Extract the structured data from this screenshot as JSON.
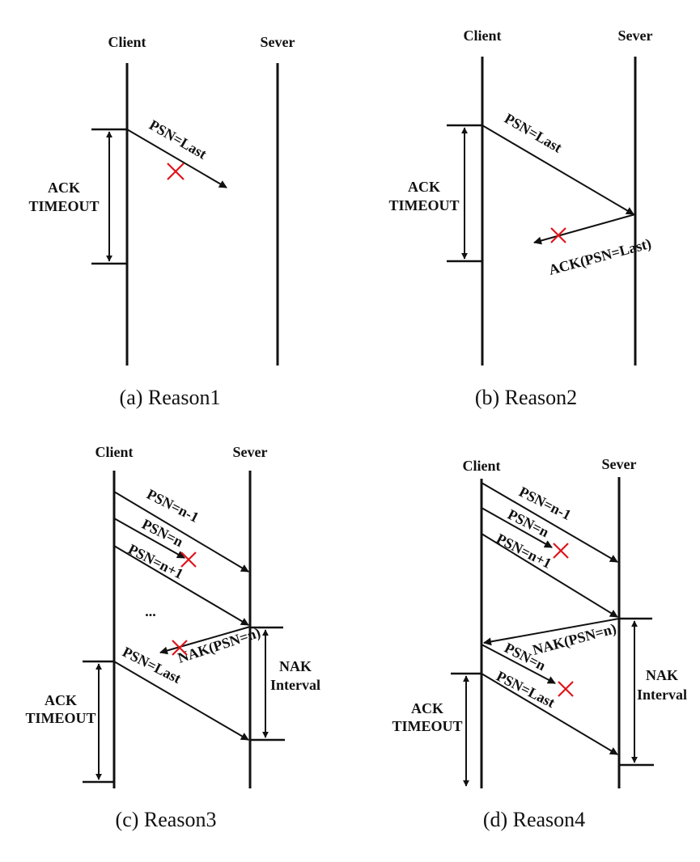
{
  "panel_a": {
    "client": "Client",
    "server": "Sever",
    "msg1": "PSN=Last",
    "timeout_1": "ACK",
    "timeout_2": "TIMEOUT",
    "caption": "(a)  Reason1"
  },
  "panel_b": {
    "client": "Client",
    "server": "Sever",
    "msg1": "PSN=Last",
    "msg2": "ACK(PSN=Last)",
    "timeout_1": "ACK",
    "timeout_2": "TIMEOUT",
    "caption": "(b)  Reason2"
  },
  "panel_c": {
    "client": "Client",
    "server": "Sever",
    "msg1": "PSN=n-1",
    "msg2": "PSN=n",
    "msg3": "PSN=n+1",
    "ellipsis": "...",
    "msg4": "NAK(PSN=n)",
    "msg5": "PSN=Last",
    "nak_1": "NAK",
    "nak_2": "Interval",
    "timeout_1": "ACK",
    "timeout_2": "TIMEOUT",
    "caption": "(c)  Reason3"
  },
  "panel_d": {
    "client": "Client",
    "server": "Sever",
    "msg1": "PSN=n-1",
    "msg2": "PSN=n",
    "msg3": "PSN=n+1",
    "msg4": "NAK(PSN=n)",
    "msg5": "PSN=n",
    "msg6": "PSN=Last",
    "nak_1": "NAK",
    "nak_2": "Interval",
    "timeout_1": "ACK",
    "timeout_2": "TIMEOUT",
    "caption": "(d)  Reason4"
  }
}
